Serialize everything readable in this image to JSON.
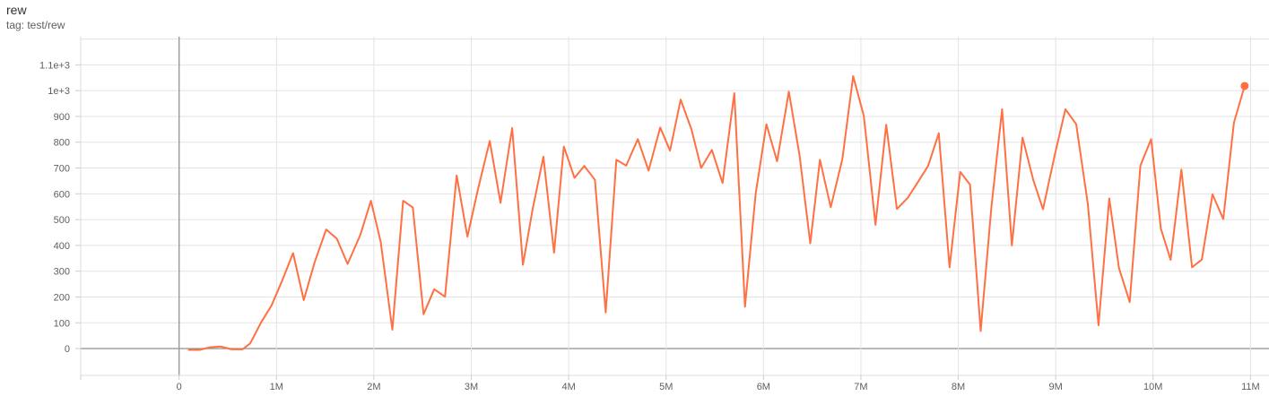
{
  "header": {
    "title": "rew",
    "subtitle": "tag: test/rew"
  },
  "colors": {
    "series": "#ff7043",
    "grid": "#e3e3e3",
    "zero_axis": "#999999",
    "border": "#dcdcdc",
    "tick_label": "#5f5f5f"
  },
  "chart_data": {
    "type": "line",
    "title": "rew",
    "tag": "test/rew",
    "grid": true,
    "xlabel": "",
    "ylabel": "",
    "xlim_millions": [
      -1.01,
      11.19
    ],
    "ylim": [
      -104,
      1209
    ],
    "x_axis": {
      "unit_suffix": "M",
      "ticks": [
        {
          "v": 0,
          "label": "0"
        },
        {
          "v": 1,
          "label": "1M"
        },
        {
          "v": 2,
          "label": "2M"
        },
        {
          "v": 3,
          "label": "3M"
        },
        {
          "v": 4,
          "label": "4M"
        },
        {
          "v": 5,
          "label": "5M"
        },
        {
          "v": 6,
          "label": "6M"
        },
        {
          "v": 7,
          "label": "7M"
        },
        {
          "v": 8,
          "label": "8M"
        },
        {
          "v": 9,
          "label": "9M"
        },
        {
          "v": 10,
          "label": "10M"
        },
        {
          "v": 11,
          "label": "11M"
        }
      ]
    },
    "y_axis": {
      "ticks": [
        {
          "v": 0,
          "label": "0"
        },
        {
          "v": 100,
          "label": "100"
        },
        {
          "v": 200,
          "label": "200"
        },
        {
          "v": 300,
          "label": "300"
        },
        {
          "v": 400,
          "label": "400"
        },
        {
          "v": 500,
          "label": "500"
        },
        {
          "v": 600,
          "label": "600"
        },
        {
          "v": 700,
          "label": "700"
        },
        {
          "v": 800,
          "label": "800"
        },
        {
          "v": 900,
          "label": "900"
        },
        {
          "v": 1000,
          "label": "1e+3"
        },
        {
          "v": 1100,
          "label": "1.1e+3"
        },
        {
          "v": 1200,
          "label": ""
        }
      ]
    },
    "series": [
      {
        "name": "test/rew",
        "color": "#ff7043",
        "end_marker": true,
        "points": [
          [
            0.1,
            -5
          ],
          [
            0.21,
            -5
          ],
          [
            0.32,
            5
          ],
          [
            0.43,
            8
          ],
          [
            0.54,
            -3
          ],
          [
            0.65,
            -3
          ],
          [
            0.73,
            20
          ],
          [
            0.84,
            100
          ],
          [
            0.95,
            168
          ],
          [
            1.06,
            265
          ],
          [
            1.17,
            370
          ],
          [
            1.28,
            188
          ],
          [
            1.39,
            333
          ],
          [
            1.51,
            462
          ],
          [
            1.62,
            426
          ],
          [
            1.73,
            328
          ],
          [
            1.86,
            440
          ],
          [
            1.97,
            573
          ],
          [
            2.07,
            414
          ],
          [
            2.19,
            73
          ],
          [
            2.3,
            573
          ],
          [
            2.4,
            547
          ],
          [
            2.51,
            133
          ],
          [
            2.62,
            230
          ],
          [
            2.73,
            201
          ],
          [
            2.85,
            671
          ],
          [
            2.96,
            434
          ],
          [
            3.07,
            620
          ],
          [
            3.19,
            805
          ],
          [
            3.3,
            565
          ],
          [
            3.42,
            855
          ],
          [
            3.53,
            325
          ],
          [
            3.63,
            540
          ],
          [
            3.74,
            744
          ],
          [
            3.85,
            372
          ],
          [
            3.95,
            783
          ],
          [
            4.06,
            662
          ],
          [
            4.16,
            708
          ],
          [
            4.27,
            654
          ],
          [
            4.38,
            140
          ],
          [
            4.49,
            732
          ],
          [
            4.59,
            709
          ],
          [
            4.71,
            812
          ],
          [
            4.82,
            690
          ],
          [
            4.94,
            857
          ],
          [
            5.04,
            767
          ],
          [
            5.15,
            965
          ],
          [
            5.26,
            850
          ],
          [
            5.36,
            700
          ],
          [
            5.47,
            770
          ],
          [
            5.58,
            642
          ],
          [
            5.7,
            990
          ],
          [
            5.81,
            162
          ],
          [
            5.92,
            600
          ],
          [
            6.03,
            870
          ],
          [
            6.14,
            726
          ],
          [
            6.26,
            996
          ],
          [
            6.37,
            750
          ],
          [
            6.48,
            408
          ],
          [
            6.58,
            732
          ],
          [
            6.69,
            548
          ],
          [
            6.81,
            735
          ],
          [
            6.92,
            1056
          ],
          [
            7.03,
            902
          ],
          [
            7.15,
            480
          ],
          [
            7.26,
            868
          ],
          [
            7.37,
            541
          ],
          [
            7.48,
            584
          ],
          [
            7.58,
            642
          ],
          [
            7.69,
            708
          ],
          [
            7.8,
            835
          ],
          [
            7.91,
            315
          ],
          [
            8.02,
            685
          ],
          [
            8.12,
            636
          ],
          [
            8.23,
            68
          ],
          [
            8.34,
            550
          ],
          [
            8.45,
            928
          ],
          [
            8.55,
            400
          ],
          [
            8.66,
            818
          ],
          [
            8.77,
            653
          ],
          [
            8.87,
            540
          ],
          [
            8.99,
            750
          ],
          [
            9.1,
            928
          ],
          [
            9.21,
            870
          ],
          [
            9.33,
            560
          ],
          [
            9.44,
            90
          ],
          [
            9.55,
            582
          ],
          [
            9.65,
            312
          ],
          [
            9.76,
            180
          ],
          [
            9.87,
            709
          ],
          [
            9.98,
            812
          ],
          [
            10.08,
            465
          ],
          [
            10.18,
            344
          ],
          [
            10.29,
            694
          ],
          [
            10.4,
            315
          ],
          [
            10.5,
            345
          ],
          [
            10.61,
            598
          ],
          [
            10.72,
            502
          ],
          [
            10.83,
            876
          ],
          [
            10.94,
            1018
          ]
        ]
      }
    ]
  }
}
